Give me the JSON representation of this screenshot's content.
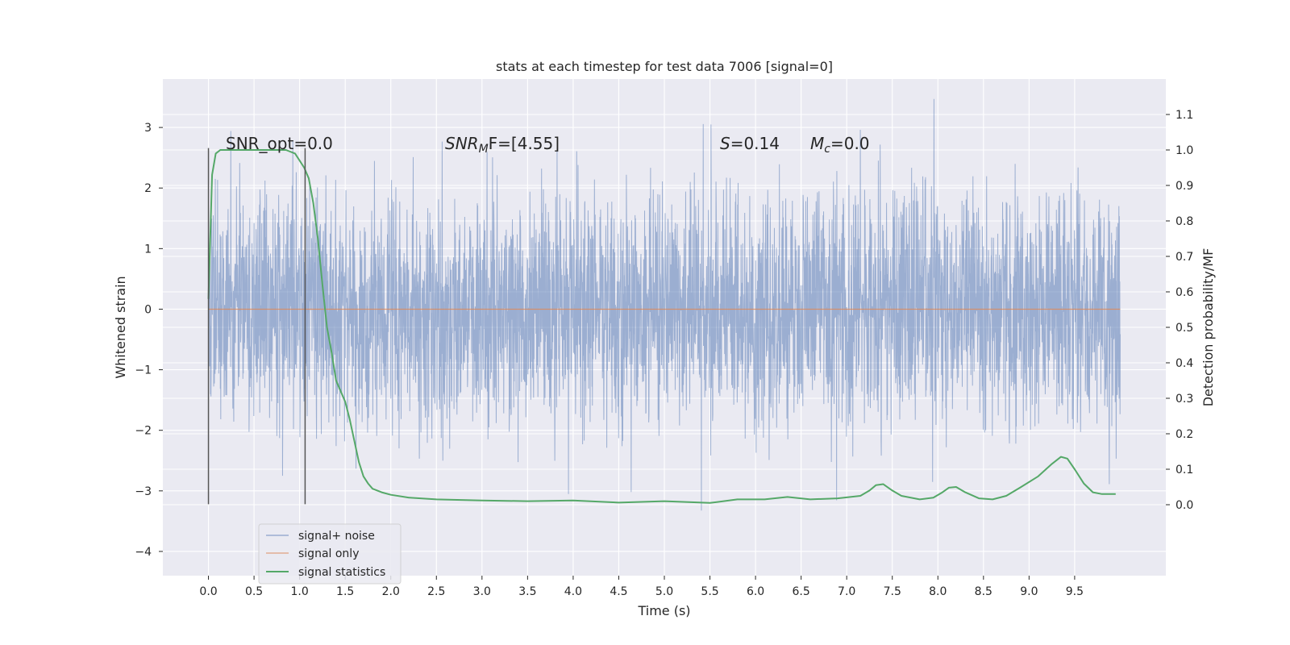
{
  "chart_data": {
    "type": "line",
    "title": "stats at each timestep for test data 7006 [signal=0]",
    "xlabel": "Time (s)",
    "ylabel_left": "Whitened strain",
    "ylabel_right": "Detection probability/MF",
    "xlim": [
      -0.5,
      10.5
    ],
    "ylim_left": [
      -4.4,
      3.8
    ],
    "ylim_right": [
      -0.2,
      1.2
    ],
    "xticks": [
      "0.0",
      "0.5",
      "1.0",
      "1.5",
      "2.0",
      "2.5",
      "3.0",
      "3.5",
      "4.0",
      "4.5",
      "5.0",
      "5.5",
      "6.0",
      "6.5",
      "7.0",
      "7.5",
      "8.0",
      "8.5",
      "9.0",
      "9.5"
    ],
    "yticks_left": [
      "3",
      "2",
      "1",
      "0",
      "−1",
      "−2",
      "−3",
      "−4"
    ],
    "yticks_right": [
      "1.1",
      "1.0",
      "0.9",
      "0.8",
      "0.7",
      "0.6",
      "0.5",
      "0.4",
      "0.3",
      "0.2",
      "0.1",
      "0.0"
    ],
    "grid": true,
    "legend_position": "lower-left",
    "annotations": {
      "snr_opt": "SNR_opt=0.0",
      "snr_mf_base": "SNR",
      "snr_mf_sub": "M",
      "snr_mf_rest": "F=[4.55]",
      "s_sym": "S",
      "s_rest": "=0.14",
      "mc_sym": "M",
      "mc_sub": "c",
      "mc_rest": "=0.0"
    },
    "vlines_x": [
      0.0,
      1.06
    ],
    "vlines_ylim": [
      -3.22,
      2.66
    ],
    "series": [
      {
        "name": "signal+ noise",
        "color": "#4c72b0",
        "axis": "left",
        "style": "dense noise",
        "x_range": [
          0.0,
          10.0
        ],
        "envelope_min": -4.05,
        "envelope_max": 3.47
      },
      {
        "name": "signal only",
        "color": "#dd8452",
        "axis": "left",
        "x": [
          0.0,
          10.0
        ],
        "y": [
          0.0,
          0.0
        ]
      },
      {
        "name": "signal statistics",
        "color": "#55a868",
        "axis": "right",
        "x": [
          0.0,
          0.04,
          0.08,
          0.13,
          0.2,
          0.3,
          0.5,
          0.7,
          0.85,
          0.95,
          1.0,
          1.05,
          1.1,
          1.15,
          1.2,
          1.25,
          1.3,
          1.35,
          1.4,
          1.45,
          1.5,
          1.55,
          1.6,
          1.65,
          1.7,
          1.75,
          1.8,
          1.9,
          2.0,
          2.2,
          2.5,
          3.0,
          3.5,
          4.0,
          4.5,
          5.0,
          5.5,
          5.8,
          6.1,
          6.35,
          6.6,
          6.9,
          7.15,
          7.25,
          7.32,
          7.4,
          7.5,
          7.6,
          7.8,
          7.95,
          8.05,
          8.12,
          8.2,
          8.3,
          8.45,
          8.6,
          8.75,
          8.9,
          9.1,
          9.25,
          9.35,
          9.42,
          9.5,
          9.6,
          9.7,
          9.8,
          9.95
        ],
        "y": [
          0.58,
          0.93,
          0.99,
          1.0,
          1.0,
          1.0,
          1.0,
          1.0,
          1.0,
          0.99,
          0.97,
          0.95,
          0.92,
          0.85,
          0.75,
          0.62,
          0.5,
          0.43,
          0.35,
          0.32,
          0.29,
          0.24,
          0.18,
          0.12,
          0.08,
          0.06,
          0.045,
          0.035,
          0.028,
          0.02,
          0.015,
          0.012,
          0.01,
          0.012,
          0.006,
          0.01,
          0.005,
          0.015,
          0.015,
          0.022,
          0.015,
          0.018,
          0.025,
          0.04,
          0.055,
          0.058,
          0.04,
          0.025,
          0.015,
          0.02,
          0.035,
          0.048,
          0.05,
          0.035,
          0.018,
          0.015,
          0.025,
          0.048,
          0.08,
          0.115,
          0.135,
          0.13,
          0.1,
          0.06,
          0.035,
          0.03,
          0.03
        ]
      }
    ]
  }
}
